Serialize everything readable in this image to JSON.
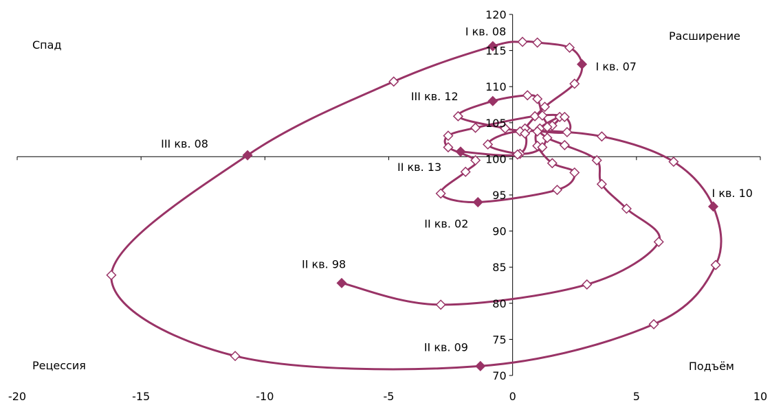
{
  "chart_data": {
    "type": "line",
    "xlim": [
      -20,
      10
    ],
    "ylim": [
      70,
      120
    ],
    "x_ticks": [
      -20,
      -15,
      -10,
      -5,
      0,
      5,
      10
    ],
    "y_ticks": [
      70,
      75,
      80,
      85,
      90,
      95,
      100,
      105,
      110,
      115,
      120
    ],
    "x_tick_labels": [
      "-20",
      "-15",
      "-10",
      "-5",
      "0",
      "5",
      "10"
    ],
    "y_tick_labels": [
      "70",
      "75",
      "80",
      "85",
      "90",
      "95",
      "100",
      "105",
      "110",
      "115",
      "120"
    ],
    "y_axis_at_x": 0,
    "x_axis_at_y": 100.3,
    "grid": false,
    "colors": {
      "line": "#993366",
      "axis": "#000000"
    },
    "quadrant_labels": [
      {
        "key": "spad",
        "text": "Спад"
      },
      {
        "key": "expansion",
        "text": "Расширение"
      },
      {
        "key": "recession",
        "text": "Рецессия"
      },
      {
        "key": "recovery",
        "text": "Подъём"
      }
    ],
    "series": [
      {
        "points": [
          {
            "x": -6.9,
            "y": 82.8,
            "label": "II кв. 98",
            "highlight": true
          },
          {
            "x": -2.9,
            "y": 79.8
          },
          {
            "x": 3.0,
            "y": 82.6
          },
          {
            "x": 5.9,
            "y": 88.5
          },
          {
            "x": 4.6,
            "y": 93.1
          },
          {
            "x": 3.6,
            "y": 96.5
          },
          {
            "x": 3.4,
            "y": 99.8
          },
          {
            "x": 2.1,
            "y": 101.9
          },
          {
            "x": 1.4,
            "y": 102.9
          },
          {
            "x": 1.1,
            "y": 104.2
          },
          {
            "x": 1.9,
            "y": 105.8
          },
          {
            "x": 1.6,
            "y": 104.6
          },
          {
            "x": 1.0,
            "y": 103.8
          },
          {
            "x": 1.0,
            "y": 101.8
          },
          {
            "x": 1.6,
            "y": 99.4
          },
          {
            "x": 2.5,
            "y": 98.1
          },
          {
            "x": 1.8,
            "y": 95.7
          },
          {
            "x": -1.4,
            "y": 94.0,
            "label": "II кв. 02",
            "highlight": true
          },
          {
            "x": -2.9,
            "y": 95.2
          },
          {
            "x": -1.9,
            "y": 98.2
          },
          {
            "x": -1.5,
            "y": 99.8
          },
          {
            "x": -2.6,
            "y": 101.6
          },
          {
            "x": -2.6,
            "y": 103.2
          },
          {
            "x": -1.5,
            "y": 104.3
          },
          {
            "x": 0.9,
            "y": 105.9
          },
          {
            "x": 2.1,
            "y": 105.8
          },
          {
            "x": 2.2,
            "y": 103.7
          },
          {
            "x": 0.6,
            "y": 104.0
          },
          {
            "x": 0.5,
            "y": 104.2
          },
          {
            "x": 1.3,
            "y": 107.2
          },
          {
            "x": 2.5,
            "y": 110.4
          },
          {
            "x": 2.8,
            "y": 113.1,
            "label": "I кв. 07",
            "highlight": true
          },
          {
            "x": 2.3,
            "y": 115.4
          },
          {
            "x": 1.0,
            "y": 116.1
          },
          {
            "x": 0.4,
            "y": 116.2
          },
          {
            "x": -0.8,
            "y": 115.6,
            "label": "I кв. 08",
            "highlight": true
          },
          {
            "x": -4.8,
            "y": 110.7
          },
          {
            "x": -10.7,
            "y": 100.5,
            "label": "III кв. 08",
            "highlight": true
          },
          {
            "x": -16.2,
            "y": 83.9
          },
          {
            "x": -11.2,
            "y": 72.7
          },
          {
            "x": -1.3,
            "y": 71.3,
            "label": "II кв. 09",
            "highlight": true
          },
          {
            "x": 5.7,
            "y": 77.1
          },
          {
            "x": 8.2,
            "y": 85.3
          },
          {
            "x": 8.1,
            "y": 93.4,
            "label": "I кв. 10",
            "highlight": true
          },
          {
            "x": 6.5,
            "y": 99.6
          },
          {
            "x": 3.6,
            "y": 103.1
          },
          {
            "x": 0.3,
            "y": 103.8
          },
          {
            "x": -1.0,
            "y": 102.0
          },
          {
            "x": 0.3,
            "y": 100.7
          },
          {
            "x": 1.2,
            "y": 101.6
          },
          {
            "x": 1.4,
            "y": 104.4
          },
          {
            "x": 1.2,
            "y": 106.0
          },
          {
            "x": 1.0,
            "y": 108.3
          },
          {
            "x": 0.6,
            "y": 108.8
          },
          {
            "x": -0.8,
            "y": 108.0,
            "label": "III кв. 12",
            "highlight": true
          },
          {
            "x": -2.2,
            "y": 105.9
          },
          {
            "x": -0.3,
            "y": 104.2
          },
          {
            "x": 0.5,
            "y": 103.5
          },
          {
            "x": 0.2,
            "y": 100.6
          },
          {
            "x": -2.1,
            "y": 101.0,
            "label": "II кв. 13",
            "highlight": true
          }
        ]
      }
    ]
  }
}
